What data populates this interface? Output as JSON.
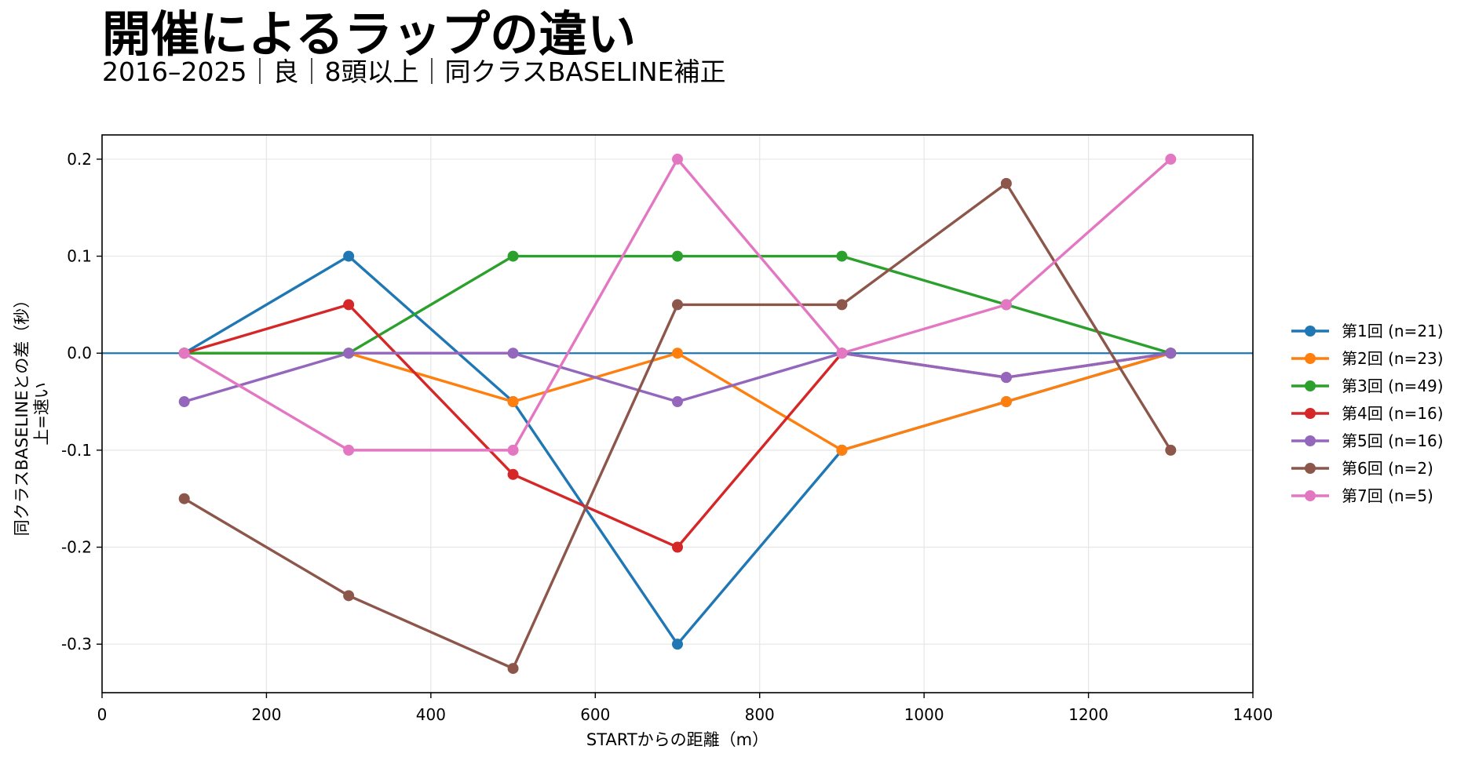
{
  "chart_data": {
    "type": "line",
    "title": "開催によるラップの違い",
    "subtitle": "2016–2025｜良｜8頭以上｜同クラスBASELINE補正",
    "xlabel": "STARTからの距離（m）",
    "ylabel": "同クラスBASELINEとの差（秒）",
    "ylabel2": "上=速い",
    "xlim": [
      0,
      1400
    ],
    "ylim": [
      -0.35,
      0.225
    ],
    "xticks": [
      0,
      200,
      400,
      600,
      800,
      1000,
      1200,
      1400
    ],
    "xtick_labels": [
      "0",
      "200",
      "400",
      "600",
      "800",
      "1000",
      "1200",
      "1400"
    ],
    "yticks": [
      -0.3,
      -0.2,
      -0.1,
      0.0,
      0.1,
      0.2
    ],
    "ytick_labels": [
      "-0.3",
      "-0.2",
      "-0.1",
      "0.0",
      "0.1",
      "0.2"
    ],
    "grid": true,
    "reference_line": {
      "y": 0,
      "color": "#1f77b4"
    },
    "legend_position": "right, outside plot area",
    "x": [
      100,
      300,
      500,
      700,
      900,
      1100,
      1300
    ],
    "series": [
      {
        "name": "第1回 (n=21)",
        "color": "#1f77b4",
        "values": [
          0.0,
          0.1,
          -0.05,
          -0.3,
          -0.1,
          -0.05,
          0.0
        ]
      },
      {
        "name": "第2回 (n=23)",
        "color": "#ff7f0e",
        "values": [
          0.0,
          0.0,
          -0.05,
          0.0,
          -0.1,
          -0.05,
          0.0
        ]
      },
      {
        "name": "第3回 (n=49)",
        "color": "#2ca02c",
        "values": [
          0.0,
          0.0,
          0.1,
          0.1,
          0.1,
          0.05,
          0.0
        ]
      },
      {
        "name": "第4回 (n=16)",
        "color": "#d62728",
        "values": [
          0.0,
          0.05,
          -0.125,
          -0.2,
          0.0,
          -0.025,
          0.0
        ]
      },
      {
        "name": "第5回 (n=16)",
        "color": "#9467bd",
        "values": [
          -0.05,
          0.0,
          0.0,
          -0.05,
          0.0,
          -0.025,
          0.0
        ]
      },
      {
        "name": "第6回 (n=2)",
        "color": "#8c564b",
        "values": [
          -0.15,
          -0.25,
          -0.325,
          0.05,
          0.05,
          0.175,
          -0.1
        ]
      },
      {
        "name": "第7回 (n=5)",
        "color": "#e377c2",
        "values": [
          0.0,
          -0.1,
          -0.1,
          0.2,
          0.0,
          0.05,
          0.2
        ]
      }
    ]
  }
}
